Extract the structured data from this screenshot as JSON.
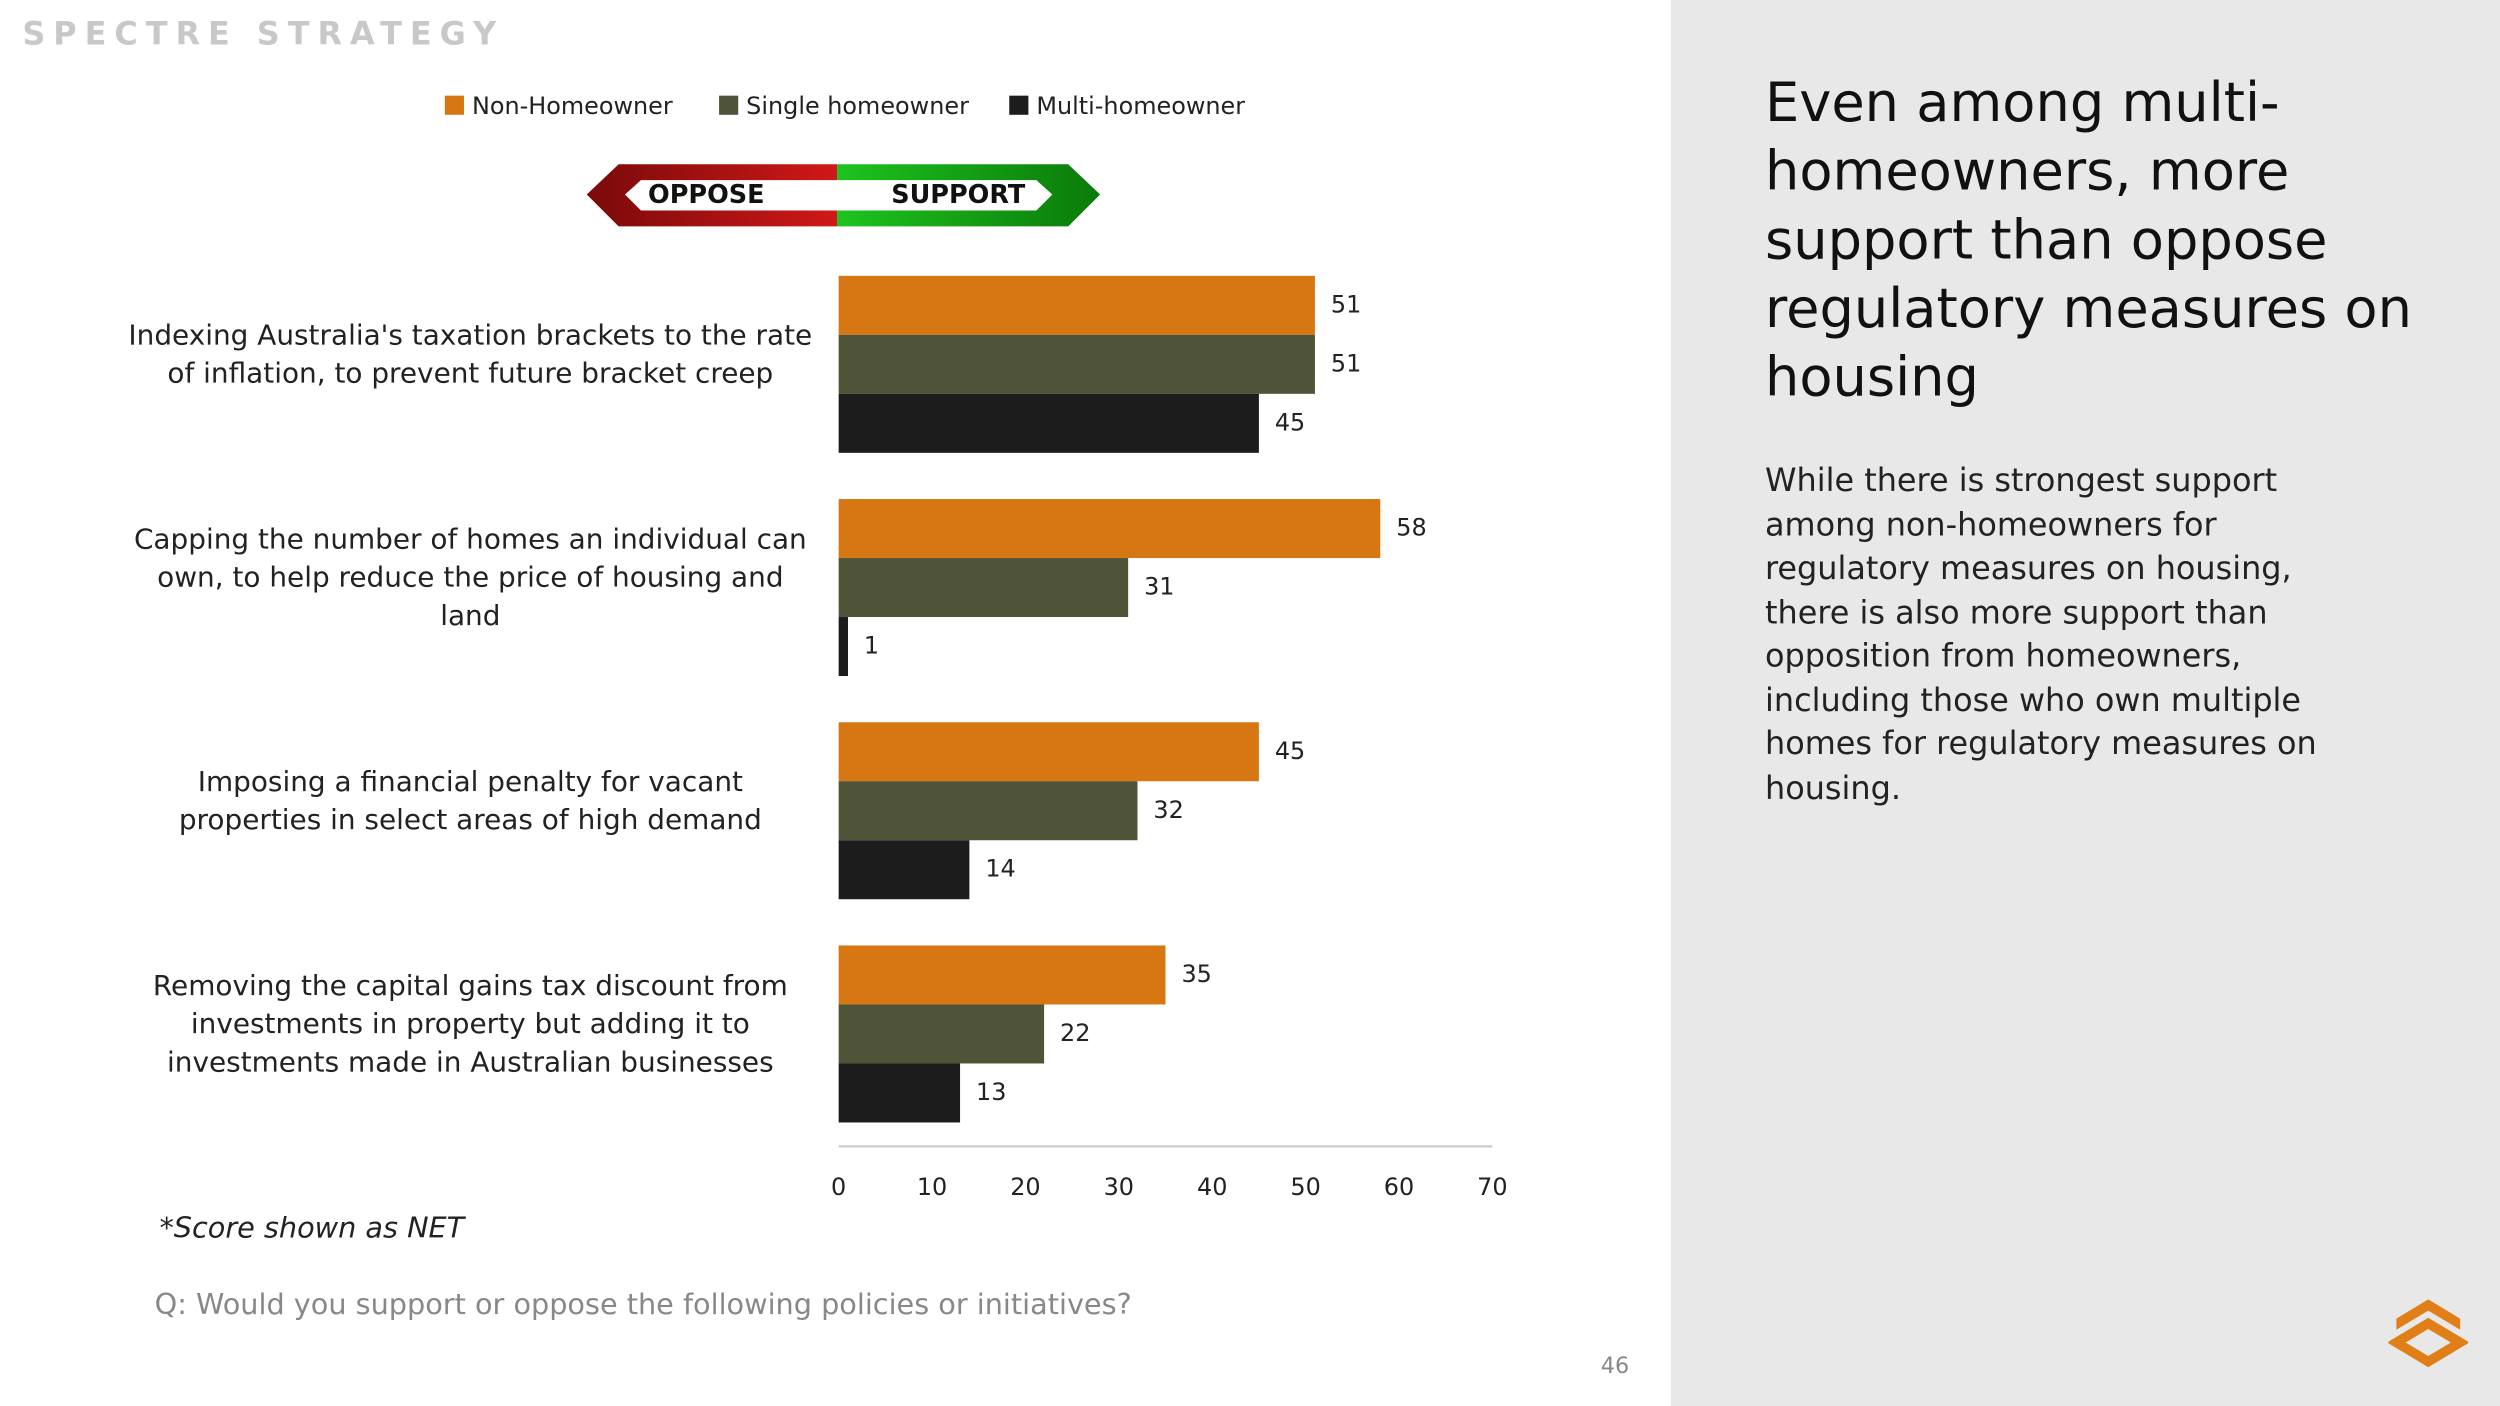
{
  "brand": "SPECTRE STRATEGY",
  "side": {
    "heading": "Even among multi-homeowners, more support than oppose regulatory measures on housing",
    "body": "While there is strongest support among non-homeowners for regulatory measures on housing, there is also more support than opposition from homeowners, including those who own multiple homes for regulatory measures on housing."
  },
  "note": "*Score shown as NET",
  "question": "Q: Would you support or oppose the following policies or initiatives?",
  "page_number": "46",
  "chart_data": {
    "type": "hbar",
    "banner": [
      "OPPOSE",
      "SUPPORT"
    ],
    "categories": [
      "Indexing Australia's taxation brackets to the rate of inflation, to prevent future bracket creep",
      "Capping the number of homes an individual can own, to help reduce the price of housing and land",
      "Imposing a financial penalty for vacant properties in select areas of high demand",
      "Removing the capital gains tax discount from investments in property but adding it to investments made in Australian businesses"
    ],
    "series": [
      {
        "name": "Non-Homeowner",
        "color": "#d67714",
        "values": [
          51,
          58,
          45,
          35
        ]
      },
      {
        "name": "Single homeowner",
        "color": "#4f5338",
        "values": [
          51,
          31,
          32,
          22
        ]
      },
      {
        "name": "Multi-homeowner",
        "color": "#1c1c1c",
        "values": [
          45,
          1,
          14,
          13
        ]
      }
    ],
    "xlim": [
      0,
      70
    ],
    "xticks": [
      0,
      10,
      20,
      30,
      40,
      50,
      60,
      70
    ]
  }
}
